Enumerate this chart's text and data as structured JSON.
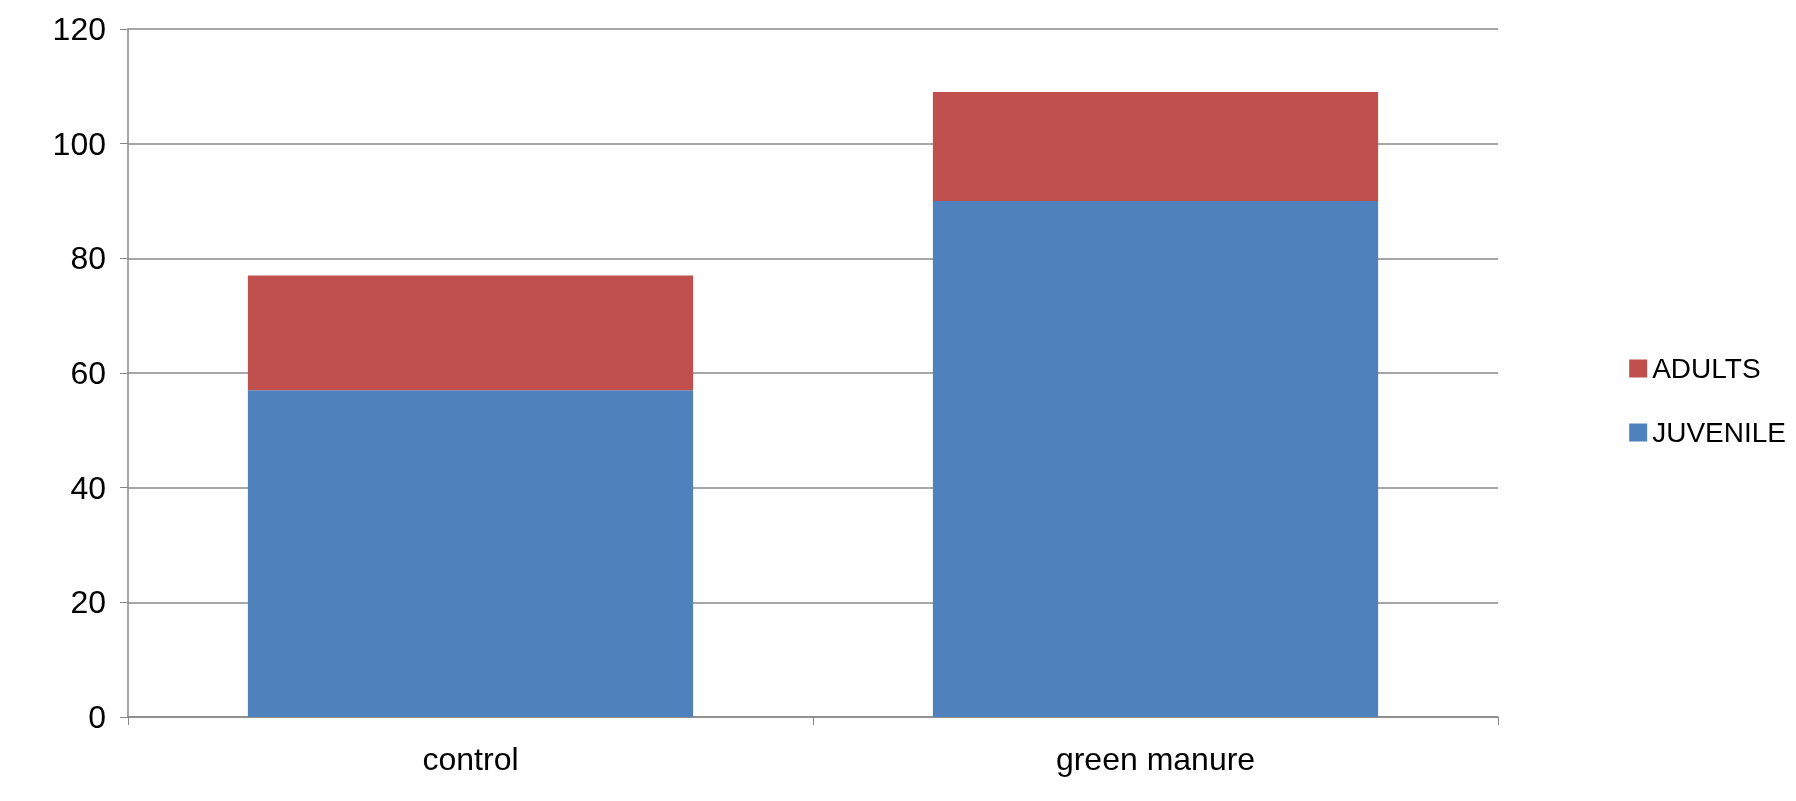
{
  "chart_data": {
    "type": "bar",
    "stacked": true,
    "categories": [
      "control",
      "green manure"
    ],
    "series": [
      {
        "name": "JUVENILE",
        "color": "#4f81bd",
        "values": [
          57,
          90
        ]
      },
      {
        "name": "ADULTS",
        "color": "#c0504d",
        "values": [
          20,
          19
        ]
      }
    ],
    "ylim": [
      0,
      120
    ],
    "yticks": [
      0,
      20,
      40,
      60,
      80,
      100,
      120
    ],
    "grid": "y",
    "legend": "right"
  }
}
